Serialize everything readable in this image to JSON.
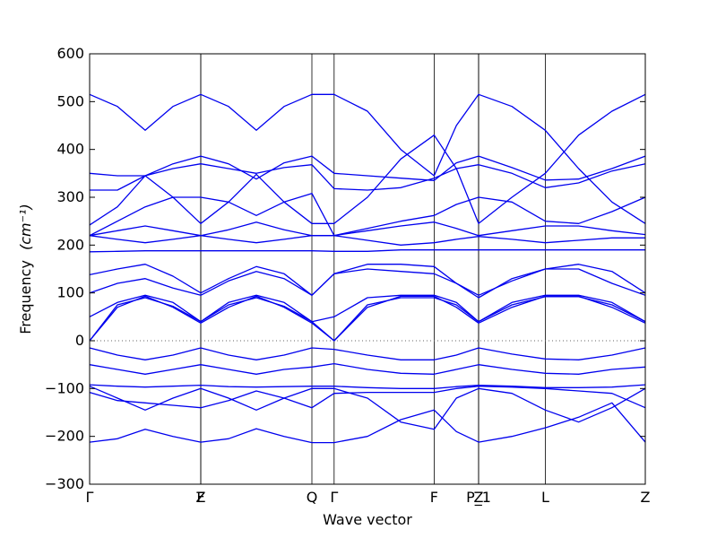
{
  "chart_data": {
    "type": "line",
    "xlabel": "Wave vector",
    "ylabel": "Frequency",
    "ylabel_unit": "(cm⁻¹)",
    "ylim": [
      -300,
      600
    ],
    "yticks": [
      -300,
      -200,
      -100,
      0,
      100,
      200,
      300,
      400,
      500,
      600
    ],
    "xlim": [
      0,
      1
    ],
    "high_symmetry_points": [
      {
        "label": "Γ",
        "x": 0.0
      },
      {
        "label": "Z",
        "x": 0.2
      },
      {
        "label": "F",
        "x": 0.2
      },
      {
        "label": "Q",
        "x": 0.4
      },
      {
        "label": "Γ",
        "x": 0.44
      },
      {
        "label": "F",
        "x": 0.62
      },
      {
        "label": "P_1",
        "x": 0.7
      },
      {
        "label": "Z",
        "x": 0.7
      },
      {
        "label": "L",
        "x": 0.82
      },
      {
        "label": "Z",
        "x": 1.0
      }
    ],
    "zero_line": true,
    "line_color": "#0000ee",
    "series": [
      {
        "x": [
          0,
          0.05,
          0.1,
          0.15,
          0.2,
          0.25,
          0.3,
          0.35,
          0.4,
          0.44,
          0.5,
          0.56,
          0.62,
          0.66,
          0.7,
          0.76,
          0.82,
          0.88,
          0.94,
          1.0
        ],
        "values": [
          -212,
          -205,
          -185,
          -200,
          -212,
          -205,
          -184,
          -200,
          -213,
          -213,
          -200,
          -165,
          -145,
          -190,
          -212,
          -200,
          -182,
          -160,
          -130,
          -212
        ]
      },
      {
        "x": [
          0,
          0.05,
          0.1,
          0.15,
          0.2,
          0.25,
          0.3,
          0.35,
          0.4,
          0.44,
          0.5,
          0.56,
          0.62,
          0.66,
          0.7,
          0.76,
          0.82,
          0.88,
          0.94,
          1.0
        ],
        "values": [
          -95,
          -120,
          -145,
          -120,
          -100,
          -120,
          -145,
          -120,
          -100,
          -100,
          -120,
          -170,
          -185,
          -120,
          -100,
          -110,
          -145,
          -170,
          -140,
          -100
        ]
      },
      {
        "x": [
          0,
          0.05,
          0.1,
          0.15,
          0.2,
          0.25,
          0.3,
          0.35,
          0.4,
          0.44,
          0.5,
          0.56,
          0.62,
          0.66,
          0.7,
          0.76,
          0.82,
          0.88,
          0.94,
          1.0
        ],
        "values": [
          -108,
          -125,
          -130,
          -135,
          -140,
          -125,
          -105,
          -120,
          -140,
          -110,
          -108,
          -108,
          -108,
          -100,
          -95,
          -97,
          -100,
          -105,
          -110,
          -140
        ]
      },
      {
        "x": [
          0,
          0.05,
          0.1,
          0.15,
          0.2,
          0.25,
          0.3,
          0.35,
          0.4,
          0.44,
          0.5,
          0.56,
          0.62,
          0.66,
          0.7,
          0.76,
          0.82,
          0.88,
          0.94,
          1.0
        ],
        "values": [
          -92,
          -95,
          -97,
          -95,
          -93,
          -96,
          -97,
          -96,
          -95,
          -95,
          -98,
          -100,
          -100,
          -96,
          -93,
          -95,
          -98,
          -98,
          -97,
          -92
        ]
      },
      {
        "x": [
          0,
          0.05,
          0.1,
          0.15,
          0.2,
          0.25,
          0.3,
          0.35,
          0.4,
          0.44,
          0.5,
          0.56,
          0.62,
          0.66,
          0.7,
          0.76,
          0.82,
          0.88,
          0.94,
          1.0
        ],
        "values": [
          -50,
          -60,
          -70,
          -60,
          -50,
          -60,
          -70,
          -60,
          -55,
          -48,
          -60,
          -68,
          -70,
          -60,
          -50,
          -60,
          -68,
          -70,
          -60,
          -55
        ]
      },
      {
        "x": [
          0,
          0.05,
          0.1,
          0.15,
          0.2,
          0.25,
          0.3,
          0.35,
          0.4,
          0.44,
          0.5,
          0.56,
          0.62,
          0.66,
          0.7,
          0.76,
          0.82,
          0.88,
          0.94,
          1.0
        ],
        "values": [
          -15,
          -30,
          -40,
          -30,
          -15,
          -30,
          -40,
          -30,
          -15,
          -18,
          -30,
          -40,
          -40,
          -30,
          -15,
          -28,
          -38,
          -40,
          -30,
          -15
        ]
      },
      {
        "x": [
          0,
          0.05,
          0.1,
          0.15,
          0.2,
          0.25,
          0.3,
          0.35,
          0.4,
          0.44,
          0.5,
          0.56,
          0.62,
          0.66,
          0.7,
          0.76,
          0.82,
          0.88,
          0.94,
          1.0
        ],
        "values": [
          0,
          70,
          93,
          70,
          37,
          70,
          93,
          70,
          37,
          0,
          70,
          93,
          93,
          70,
          37,
          70,
          93,
          93,
          70,
          37
        ]
      },
      {
        "x": [
          0,
          0.05,
          0.1,
          0.15,
          0.2,
          0.25,
          0.3,
          0.35,
          0.4,
          0.44,
          0.5,
          0.56,
          0.62,
          0.66,
          0.7,
          0.76,
          0.82,
          0.88,
          0.94,
          1.0
        ],
        "values": [
          0,
          75,
          90,
          72,
          40,
          75,
          90,
          72,
          40,
          0,
          75,
          90,
          90,
          75,
          40,
          75,
          92,
          92,
          75,
          40
        ]
      },
      {
        "x": [
          0,
          0.05,
          0.1,
          0.15,
          0.2,
          0.25,
          0.3,
          0.35,
          0.4,
          0.44,
          0.5,
          0.56,
          0.62,
          0.66,
          0.7,
          0.76,
          0.82,
          0.88,
          0.94,
          1.0
        ],
        "values": [
          50,
          80,
          95,
          80,
          40,
          80,
          95,
          80,
          40,
          50,
          90,
          95,
          95,
          80,
          40,
          80,
          95,
          95,
          80,
          40
        ]
      },
      {
        "x": [
          0,
          0.05,
          0.1,
          0.15,
          0.2,
          0.25,
          0.3,
          0.35,
          0.4,
          0.44,
          0.5,
          0.56,
          0.62,
          0.66,
          0.7,
          0.76,
          0.82,
          0.88,
          0.94,
          1.0
        ],
        "values": [
          100,
          120,
          130,
          110,
          95,
          125,
          145,
          130,
          95,
          140,
          150,
          145,
          140,
          120,
          95,
          125,
          150,
          150,
          120,
          95
        ]
      },
      {
        "x": [
          0,
          0.05,
          0.1,
          0.15,
          0.2,
          0.25,
          0.3,
          0.35,
          0.4,
          0.44,
          0.5,
          0.56,
          0.62,
          0.66,
          0.7,
          0.76,
          0.82,
          0.88,
          0.94,
          1.0
        ],
        "values": [
          138,
          150,
          160,
          135,
          100,
          130,
          155,
          140,
          95,
          140,
          160,
          160,
          155,
          120,
          90,
          130,
          150,
          160,
          145,
          100
        ]
      },
      {
        "x": [
          0,
          0.05,
          0.1,
          0.15,
          0.2,
          0.25,
          0.3,
          0.35,
          0.4,
          0.44,
          0.5,
          0.56,
          0.62,
          0.66,
          0.7,
          0.76,
          0.82,
          0.88,
          0.94,
          1.0
        ],
        "values": [
          186,
          187,
          188,
          188,
          188,
          188,
          188,
          188,
          188,
          187,
          187,
          190,
          190,
          190,
          190,
          190,
          190,
          190,
          190,
          190
        ]
      },
      {
        "x": [
          0,
          0.05,
          0.1,
          0.15,
          0.2,
          0.25,
          0.3,
          0.35,
          0.4,
          0.44,
          0.5,
          0.56,
          0.62,
          0.66,
          0.7,
          0.76,
          0.82,
          0.88,
          0.94,
          1.0
        ],
        "values": [
          220,
          212,
          205,
          212,
          220,
          212,
          205,
          212,
          220,
          220,
          210,
          200,
          205,
          212,
          218,
          212,
          205,
          210,
          215,
          215
        ]
      },
      {
        "x": [
          0,
          0.05,
          0.1,
          0.15,
          0.2,
          0.25,
          0.3,
          0.35,
          0.4,
          0.44,
          0.5,
          0.56,
          0.62,
          0.66,
          0.7,
          0.76,
          0.82,
          0.88,
          0.94,
          1.0
        ],
        "values": [
          220,
          230,
          240,
          230,
          220,
          232,
          248,
          232,
          220,
          220,
          230,
          240,
          248,
          235,
          220,
          230,
          240,
          240,
          230,
          222
        ]
      },
      {
        "x": [
          0,
          0.05,
          0.1,
          0.15,
          0.2,
          0.25,
          0.3,
          0.35,
          0.4,
          0.44,
          0.5,
          0.56,
          0.62,
          0.66,
          0.7,
          0.76,
          0.82,
          0.88,
          0.94,
          1.0
        ],
        "values": [
          220,
          250,
          280,
          300,
          300,
          290,
          262,
          290,
          308,
          220,
          235,
          250,
          262,
          285,
          300,
          290,
          250,
          245,
          270,
          300
        ]
      },
      {
        "x": [
          0,
          0.05,
          0.1,
          0.15,
          0.2,
          0.25,
          0.3,
          0.35,
          0.4,
          0.44,
          0.5,
          0.56,
          0.62,
          0.66,
          0.7,
          0.76,
          0.82,
          0.88,
          0.94,
          1.0
        ],
        "values": [
          242,
          280,
          345,
          300,
          245,
          290,
          348,
          290,
          245,
          245,
          300,
          380,
          430,
          360,
          245,
          300,
          350,
          430,
          480,
          515
        ]
      },
      {
        "x": [
          0,
          0.05,
          0.1,
          0.15,
          0.2,
          0.25,
          0.3,
          0.35,
          0.4,
          0.44,
          0.5,
          0.56,
          0.62,
          0.66,
          0.7,
          0.76,
          0.82,
          0.88,
          0.94,
          1.0
        ],
        "values": [
          315,
          315,
          345,
          360,
          370,
          360,
          350,
          362,
          368,
          318,
          315,
          320,
          340,
          360,
          368,
          350,
          320,
          330,
          355,
          370
        ]
      },
      {
        "x": [
          0,
          0.05,
          0.1,
          0.15,
          0.2,
          0.25,
          0.3,
          0.35,
          0.4,
          0.44,
          0.5,
          0.56,
          0.62,
          0.66,
          0.7,
          0.76,
          0.82,
          0.88,
          0.94,
          1.0
        ],
        "values": [
          350,
          345,
          345,
          370,
          386,
          370,
          338,
          372,
          386,
          350,
          345,
          340,
          335,
          372,
          386,
          362,
          336,
          338,
          360,
          386
        ]
      },
      {
        "x": [
          0,
          0.05,
          0.1,
          0.15,
          0.2,
          0.25,
          0.3,
          0.35,
          0.4,
          0.44,
          0.5,
          0.56,
          0.62,
          0.66,
          0.7,
          0.76,
          0.82,
          0.88,
          0.94,
          1.0
        ],
        "values": [
          515,
          490,
          440,
          490,
          515,
          490,
          440,
          490,
          515,
          515,
          480,
          400,
          345,
          450,
          515,
          490,
          440,
          360,
          290,
          245
        ]
      }
    ]
  }
}
